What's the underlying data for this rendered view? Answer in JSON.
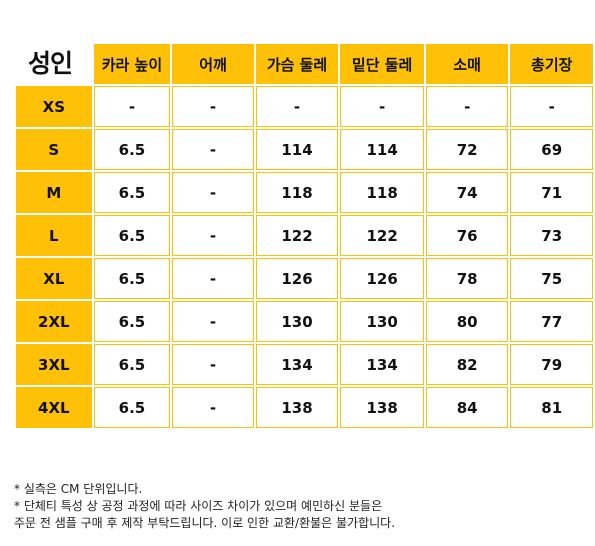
{
  "table": {
    "corner_label": "성인",
    "columns": [
      "카라 높이",
      "어깨",
      "가슴 둘레",
      "밑단 둘레",
      "소매",
      "총기장"
    ],
    "rows": [
      {
        "size": "XS",
        "values": [
          "-",
          "-",
          "-",
          "-",
          "-",
          "-"
        ]
      },
      {
        "size": "S",
        "values": [
          "6.5",
          "-",
          "114",
          "114",
          "72",
          "69"
        ]
      },
      {
        "size": "M",
        "values": [
          "6.5",
          "-",
          "118",
          "118",
          "74",
          "71"
        ]
      },
      {
        "size": "L",
        "values": [
          "6.5",
          "-",
          "122",
          "122",
          "76",
          "73"
        ]
      },
      {
        "size": "XL",
        "values": [
          "6.5",
          "-",
          "126",
          "126",
          "78",
          "75"
        ]
      },
      {
        "size": "2XL",
        "values": [
          "6.5",
          "-",
          "130",
          "130",
          "80",
          "77"
        ]
      },
      {
        "size": "3XL",
        "values": [
          "6.5",
          "-",
          "134",
          "134",
          "82",
          "79"
        ]
      },
      {
        "size": "4XL",
        "values": [
          "6.5",
          "-",
          "138",
          "138",
          "84",
          "81"
        ]
      }
    ]
  },
  "notes": [
    "* 실측은 CM 단위입니다.",
    "* 단체티 특성 상 공정 과정에 따라 사이즈 차이가 있으며 예민하신 분들은",
    "주문 전 샘플 구매 후 제작 부탁드립니다. 이로 인한 교환/환불은 불가합니다."
  ],
  "colors": {
    "accent": "#ffc107"
  }
}
